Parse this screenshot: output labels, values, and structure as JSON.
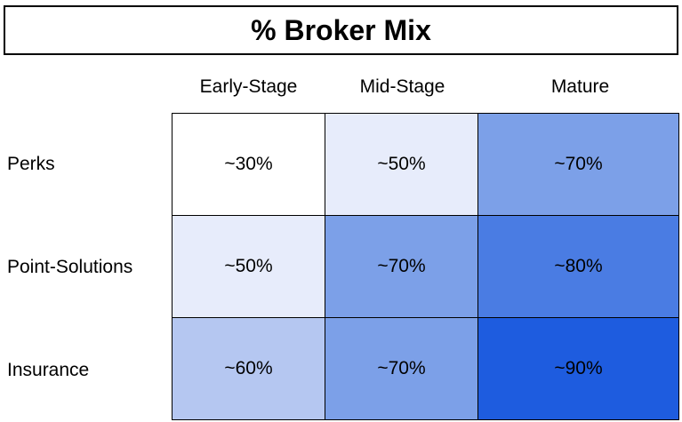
{
  "title": "% Broker Mix",
  "colors": {
    "border": "#000000",
    "text": "#000000",
    "background": "#FFFFFF",
    "scale_low": "#FFFFFF",
    "scale_high": "#1E5CDF"
  },
  "chart_data": {
    "type": "heatmap",
    "title": "% Broker Mix",
    "columns": [
      "Early-Stage",
      "Mid-Stage",
      "Mature"
    ],
    "rows": [
      "Perks",
      "Point-Solutions",
      "Insurance"
    ],
    "values": [
      [
        30,
        50,
        70
      ],
      [
        50,
        70,
        80
      ],
      [
        60,
        70,
        90
      ]
    ],
    "labels": [
      [
        "~30%",
        "~50%",
        "~70%"
      ],
      [
        "~50%",
        "~70%",
        "~80%"
      ],
      [
        "~60%",
        "~70%",
        "~90%"
      ]
    ],
    "cell_colors": [
      [
        "#FFFFFF",
        "#E7ECFB",
        "#7CA0E8"
      ],
      [
        "#E7ECFB",
        "#7CA0E8",
        "#4A7CE3"
      ],
      [
        "#B5C7F1",
        "#7CA0E8",
        "#1E5CDF"
      ]
    ],
    "color_scale": {
      "min_value": 30,
      "max_value": 90,
      "min_color": "#FFFFFF",
      "max_color": "#1E5CDF"
    },
    "legend": "none",
    "grid": true
  }
}
